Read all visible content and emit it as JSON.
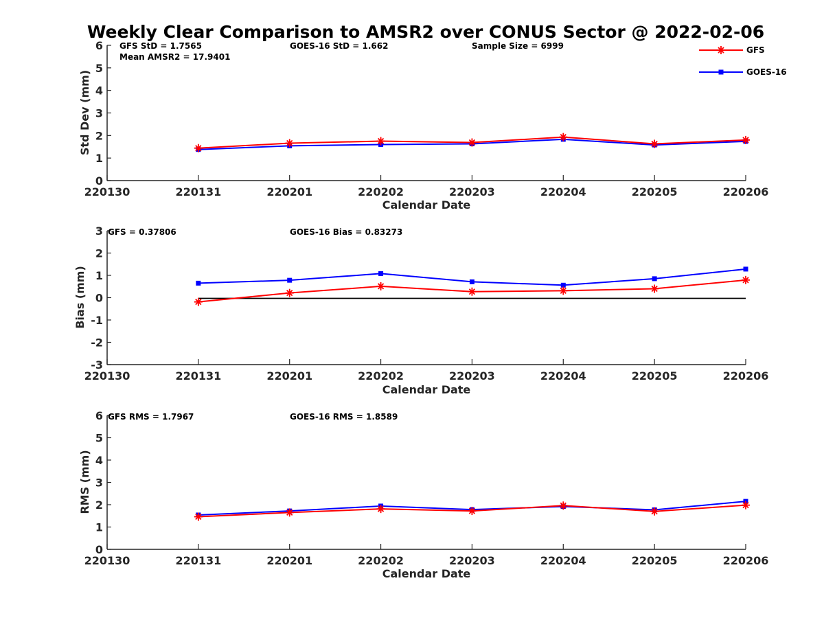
{
  "chart_data": {
    "title": "Weekly Clear Comparison to AMSR2 over CONUS Sector @ 2022-02-06",
    "x_ticks": [
      "220130",
      "220131",
      "220201",
      "220202",
      "220203",
      "220204",
      "220205",
      "220206"
    ],
    "legend": {
      "placement": "top-right",
      "entries": [
        {
          "name": "GFS",
          "color": "#ff0000",
          "marker": "asterisk"
        },
        {
          "name": "GOES-16",
          "color": "#0000ff",
          "marker": "square"
        }
      ]
    },
    "panels": [
      {
        "type": "line",
        "ylabel": "Std Dev (mm)",
        "xlabel": "Calendar Date",
        "ylim": [
          0,
          6
        ],
        "yticks": [
          "0",
          "1",
          "2",
          "3",
          "4",
          "5",
          "6"
        ],
        "annotations": [
          "GFS StD = 1.7565",
          "Mean AMSR2 = 17.9401",
          "GOES-16 StD = 1.662",
          "Sample Size = 6999"
        ],
        "series": [
          {
            "name": "GFS",
            "x": [
              "220131",
              "220201",
              "220202",
              "220203",
              "220204",
              "220205",
              "220206"
            ],
            "values": [
              1.44,
              1.66,
              1.75,
              1.69,
              1.93,
              1.63,
              1.8
            ]
          },
          {
            "name": "GOES-16",
            "x": [
              "220131",
              "220201",
              "220202",
              "220203",
              "220204",
              "220205",
              "220206"
            ],
            "values": [
              1.38,
              1.54,
              1.6,
              1.63,
              1.83,
              1.58,
              1.74
            ]
          }
        ]
      },
      {
        "type": "line",
        "ylabel": "Bias (mm)",
        "xlabel": "Calendar Date",
        "ylim": [
          -3,
          3
        ],
        "yticks": [
          "-3",
          "-2",
          "-1",
          "0",
          "1",
          "2",
          "3"
        ],
        "zero_line": true,
        "annotations": [
          "GFS = 0.37806",
          "GOES-16 Bias  = 0.83273"
        ],
        "series": [
          {
            "name": "GFS",
            "x": [
              "220131",
              "220201",
              "220202",
              "220203",
              "220204",
              "220205",
              "220206"
            ],
            "values": [
              -0.19,
              0.21,
              0.51,
              0.27,
              0.31,
              0.4,
              0.79
            ]
          },
          {
            "name": "GOES-16",
            "x": [
              "220131",
              "220201",
              "220202",
              "220203",
              "220204",
              "220205",
              "220206"
            ],
            "values": [
              0.65,
              0.78,
              1.08,
              0.71,
              0.56,
              0.85,
              1.28
            ]
          }
        ]
      },
      {
        "type": "line",
        "ylabel": "RMS (mm)",
        "xlabel": "Calendar Date",
        "ylim": [
          0,
          6
        ],
        "yticks": [
          "0",
          "1",
          "2",
          "3",
          "4",
          "5",
          "6"
        ],
        "annotations": [
          "GFS RMS = 1.7967",
          "GOES-16 RMS = 1.8589"
        ],
        "series": [
          {
            "name": "GFS",
            "x": [
              "220131",
              "220201",
              "220202",
              "220203",
              "220204",
              "220205",
              "220206"
            ],
            "values": [
              1.46,
              1.65,
              1.81,
              1.72,
              1.96,
              1.7,
              1.98
            ]
          },
          {
            "name": "GOES-16",
            "x": [
              "220131",
              "220201",
              "220202",
              "220203",
              "220204",
              "220205",
              "220206"
            ],
            "values": [
              1.54,
              1.72,
              1.94,
              1.78,
              1.92,
              1.77,
              2.15
            ]
          }
        ]
      }
    ]
  }
}
